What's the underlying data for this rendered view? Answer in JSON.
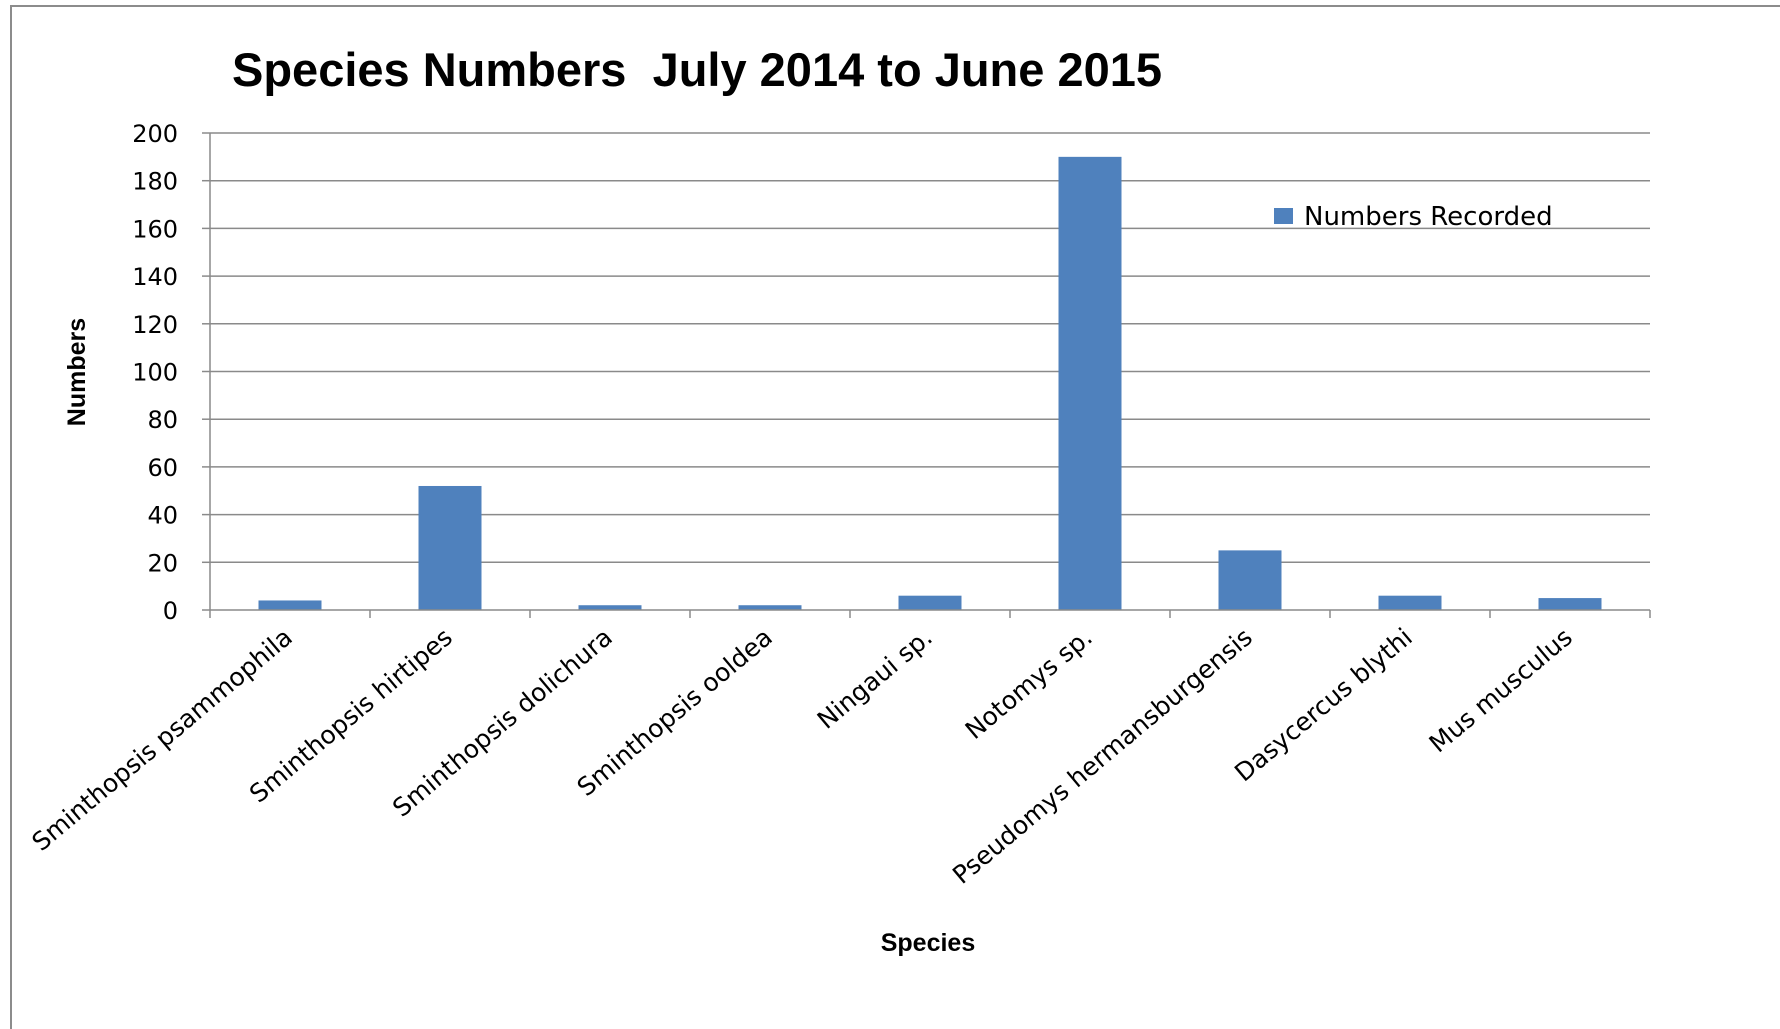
{
  "chart_data": {
    "type": "bar",
    "title": "Species Numbers  July 2014 to June 2015",
    "xlabel": "Species",
    "ylabel": "Numbers",
    "ylim": [
      0,
      200
    ],
    "yticks": [
      0,
      20,
      40,
      60,
      80,
      100,
      120,
      140,
      160,
      180,
      200
    ],
    "grid": true,
    "legend_position": "top-right",
    "categories": [
      "Sminthopsis psammophila",
      "Sminthopsis hirtipes",
      "Sminthopsis dolichura",
      "Sminthopsis ooldea",
      "Ningaui sp.",
      "Notomys sp.",
      "Pseudomys hermansburgensis",
      "Dasycercus blythi",
      "Mus musculus"
    ],
    "series": [
      {
        "name": "Numbers Recorded",
        "color": "#4F81BD",
        "values": [
          4,
          52,
          2,
          2,
          6,
          190,
          25,
          6,
          5
        ]
      }
    ]
  }
}
